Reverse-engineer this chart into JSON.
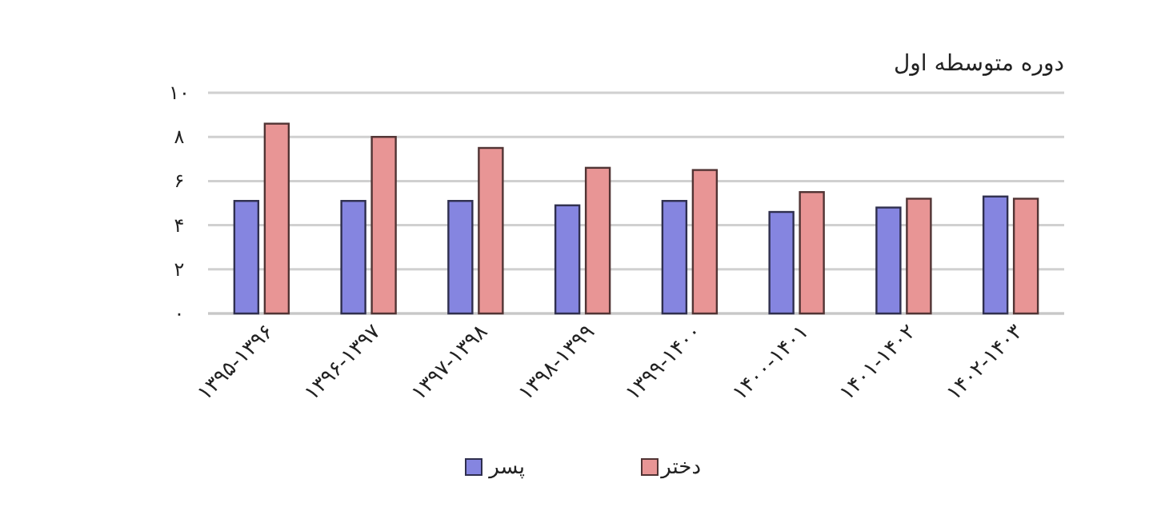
{
  "chart_data": {
    "type": "bar",
    "title": "دوره متوسطه اول",
    "categories": [
      "۱۳۹۵-۱۳۹۶",
      "۱۳۹۶-۱۳۹۷",
      "۱۳۹۷-۱۳۹۸",
      "۱۳۹۸-۱۳۹۹",
      "۱۳۹۹-۱۴۰۰",
      "۱۴۰۰-۱۴۰۱",
      "۱۴۰۱-۱۴۰۲",
      "۱۴۰۲-۱۴۰۳"
    ],
    "series": [
      {
        "name": "پسر",
        "color": "#8585e0",
        "values": [
          5.1,
          5.1,
          5.1,
          4.9,
          5.1,
          4.6,
          4.8,
          5.3
        ]
      },
      {
        "name": "دختر",
        "color": "#e89595",
        "values": [
          8.6,
          8.0,
          7.5,
          6.6,
          6.5,
          5.5,
          5.2,
          5.2
        ]
      }
    ],
    "ylim": [
      0,
      10
    ],
    "yticks": [
      {
        "value": 0,
        "label": "۰"
      },
      {
        "value": 2,
        "label": "۲"
      },
      {
        "value": 4,
        "label": "۴"
      },
      {
        "value": 6,
        "label": "۶"
      },
      {
        "value": 8,
        "label": "۸"
      },
      {
        "value": 10,
        "label": "۱۰"
      }
    ],
    "grid": "y",
    "legend": "bottom"
  }
}
